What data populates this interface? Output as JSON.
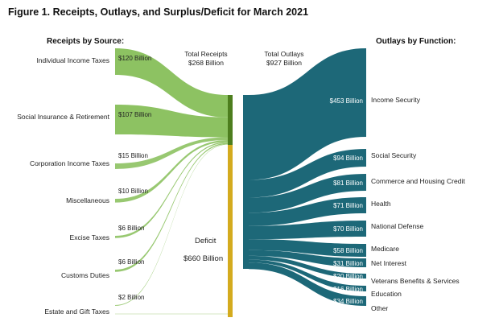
{
  "title": "Figure 1. Receipts, Outlays, and Surplus/Deficit for March 2021",
  "receipts_header": "Receipts by Source:",
  "outlays_header": "Outlays by Function:",
  "total_receipts": {
    "line1": "Total Receipts",
    "line2": "$268 Billion"
  },
  "total_outlays": {
    "line1": "Total Outlays",
    "line2": "$927 Billion"
  },
  "deficit": {
    "label": "Deficit",
    "value": "$660 Billion"
  },
  "colors": {
    "receipts": "#8dc262",
    "receipts_dark": "#4d7e1e",
    "deficit": "#d4ab1e",
    "outlays": "#1d6878"
  },
  "chart_data": {
    "type": "sankey",
    "units": "Billion",
    "receipts": [
      {
        "name": "Individual Income Taxes",
        "value": 120,
        "value_label": "$120 Billion"
      },
      {
        "name": "Social Insurance & Retirement",
        "value": 107,
        "value_label": "$107 Billion"
      },
      {
        "name": "Corporation Income Taxes",
        "value": 15,
        "value_label": "$15 Billion"
      },
      {
        "name": "Miscellaneous",
        "value": 10,
        "value_label": "$10 Billion"
      },
      {
        "name": "Excise Taxes",
        "value": 6,
        "value_label": "$6 Billion"
      },
      {
        "name": "Customs Duties",
        "value": 6,
        "value_label": "$6 Billion"
      },
      {
        "name": "Estate and Gift Taxes",
        "value": 2,
        "value_label": "$2 Billion"
      }
    ],
    "total_receipts": 268,
    "deficit": 660,
    "total_outlays": 927,
    "outlays": [
      {
        "name": "Income Security",
        "value": 453,
        "value_label": "$453 Billion"
      },
      {
        "name": "Social Security",
        "value": 94,
        "value_label": "$94 Billion"
      },
      {
        "name": "Commerce and Housing Credit",
        "value": 81,
        "value_label": "$81 Billion"
      },
      {
        "name": "Health",
        "value": 71,
        "value_label": "$71 Billion"
      },
      {
        "name": "National Defense",
        "value": 70,
        "value_label": "$70 Billion"
      },
      {
        "name": "Medicare",
        "value": 58,
        "value_label": "$58 Billion"
      },
      {
        "name": "Net Interest",
        "value": 31,
        "value_label": "$31 Billion"
      },
      {
        "name": "Veterans Benefits & Services",
        "value": 20,
        "value_label": "$20 Billion"
      },
      {
        "name": "Education",
        "value": 16,
        "value_label": "$16 Billion"
      },
      {
        "name": "Other",
        "value": 34,
        "value_label": "$34 Billion"
      }
    ]
  }
}
